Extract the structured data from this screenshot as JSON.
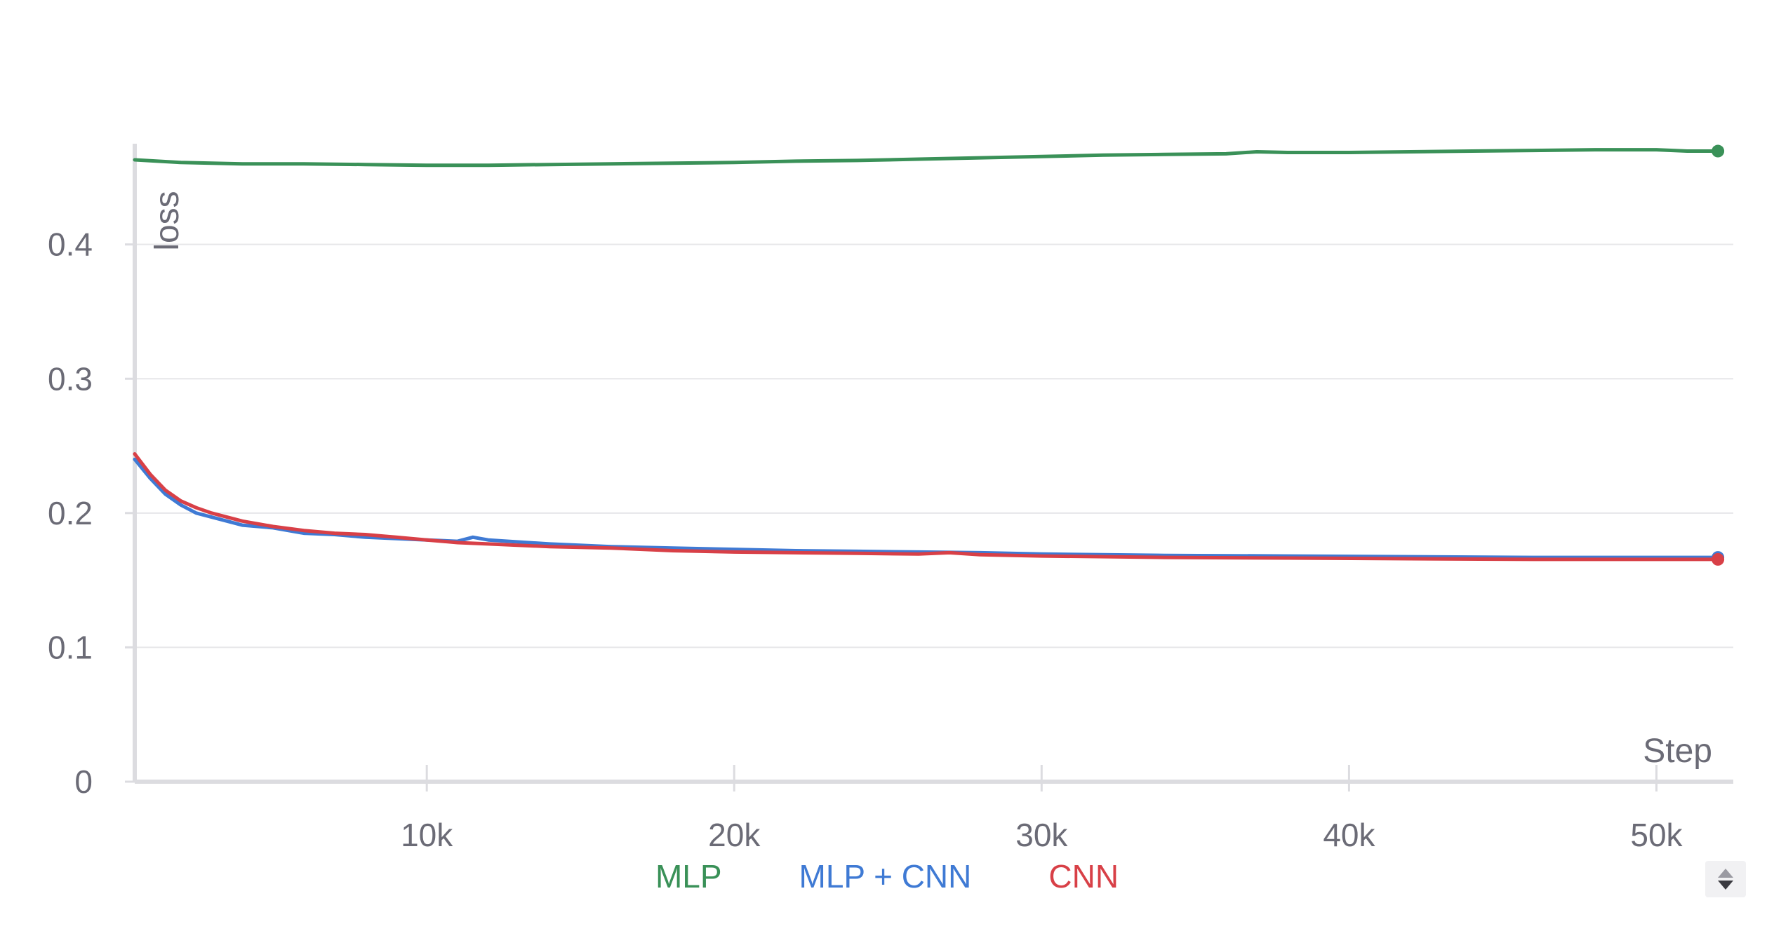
{
  "chart_data": {
    "type": "line",
    "title": "",
    "xlabel": "Step",
    "ylabel": "loss",
    "xlim": [
      500,
      52500
    ],
    "ylim": [
      0,
      0.475
    ],
    "x_ticks": [
      10000,
      20000,
      30000,
      40000,
      50000
    ],
    "x_tick_labels": [
      "10k",
      "20k",
      "30k",
      "40k",
      "50k"
    ],
    "y_ticks": [
      0,
      0.1,
      0.2,
      0.3,
      0.4
    ],
    "y_tick_labels": [
      "0",
      "0.1",
      "0.2",
      "0.3",
      "0.4"
    ],
    "grid": true,
    "legend_position": "bottom-center",
    "series": [
      {
        "name": "MLP",
        "color": "#3a9158",
        "x": [
          500,
          2000,
          4000,
          6000,
          8000,
          10000,
          12000,
          14000,
          16000,
          18000,
          20000,
          22000,
          24000,
          26000,
          28000,
          30000,
          32000,
          34000,
          36000,
          37000,
          38000,
          40000,
          42000,
          44000,
          46000,
          48000,
          50000,
          51000,
          52000
        ],
        "values": [
          0.463,
          0.461,
          0.46,
          0.46,
          0.4595,
          0.459,
          0.459,
          0.4595,
          0.46,
          0.4605,
          0.461,
          0.462,
          0.4625,
          0.4635,
          0.4645,
          0.4655,
          0.4665,
          0.467,
          0.4675,
          0.469,
          0.4685,
          0.4685,
          0.469,
          0.4695,
          0.47,
          0.4705,
          0.4705,
          0.4695,
          0.4695
        ]
      },
      {
        "name": "MLP + CNN",
        "color": "#3f7ad4",
        "x": [
          500,
          1000,
          1500,
          2000,
          2500,
          3000,
          4000,
          5000,
          6000,
          7000,
          8000,
          9000,
          10000,
          11000,
          11500,
          12000,
          14000,
          16000,
          18000,
          20000,
          22000,
          24000,
          26000,
          28000,
          30000,
          34000,
          38000,
          42000,
          46000,
          50000,
          52000
        ],
        "values": [
          0.24,
          0.226,
          0.214,
          0.206,
          0.2,
          0.197,
          0.191,
          0.189,
          0.185,
          0.184,
          0.182,
          0.181,
          0.18,
          0.179,
          0.182,
          0.18,
          0.177,
          0.175,
          0.174,
          0.173,
          0.172,
          0.1715,
          0.171,
          0.1705,
          0.1695,
          0.1685,
          0.168,
          0.1675,
          0.167,
          0.167,
          0.167
        ]
      },
      {
        "name": "CNN",
        "color": "#d84047",
        "x": [
          500,
          1000,
          1500,
          2000,
          2500,
          3000,
          4000,
          5000,
          6000,
          7000,
          8000,
          9000,
          10000,
          11000,
          12000,
          14000,
          16000,
          18000,
          20000,
          22000,
          24000,
          26000,
          27000,
          28000,
          30000,
          34000,
          38000,
          42000,
          46000,
          50000,
          52000
        ],
        "values": [
          0.244,
          0.229,
          0.217,
          0.209,
          0.204,
          0.2,
          0.194,
          0.19,
          0.187,
          0.185,
          0.184,
          0.182,
          0.18,
          0.178,
          0.177,
          0.175,
          0.174,
          0.172,
          0.171,
          0.1705,
          0.17,
          0.1695,
          0.1705,
          0.169,
          0.168,
          0.167,
          0.1665,
          0.166,
          0.1655,
          0.1655,
          0.1655
        ]
      }
    ]
  },
  "legend": {
    "items": [
      {
        "label": "MLP",
        "color": "#3a9158"
      },
      {
        "label": "MLP + CNN",
        "color": "#3f7ad4"
      },
      {
        "label": "CNN",
        "color": "#d84047"
      }
    ],
    "scroll_icon": "legend-scroll-arrows-icon"
  }
}
